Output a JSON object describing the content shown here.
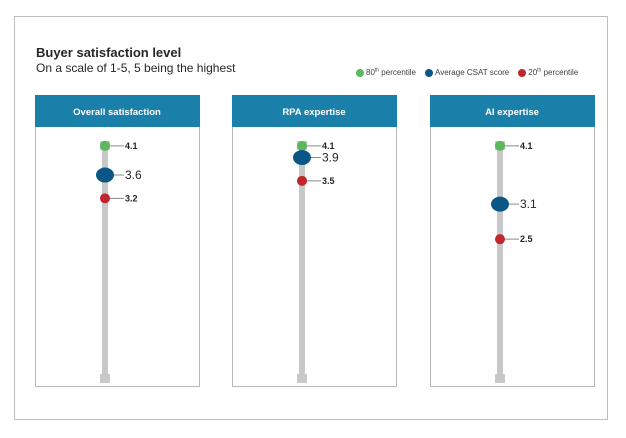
{
  "title": "Buyer satisfaction level",
  "subtitle": "On a scale of 1-5, 5 being the highest",
  "colors": {
    "panel_header": "#1a7fa9",
    "panel_border": "#b8b8b8",
    "track": "#c8c8c8",
    "p80": "#5cb85c",
    "avg": "#0a5787",
    "p20": "#c0272d",
    "label": "#262626"
  },
  "legend": [
    {
      "key": "p80",
      "prefix": "80",
      "sup": "th",
      "suffix": " percentile"
    },
    {
      "key": "avg",
      "prefix": "Average CSAT score",
      "sup": "",
      "suffix": ""
    },
    {
      "key": "p20",
      "prefix": "20",
      "sup": "th",
      "suffix": " percentile"
    }
  ],
  "chart_data": {
    "type": "scatter",
    "title": "Buyer satisfaction level",
    "subtitle": "On a scale of 1-5, 5 being the highest",
    "series_names": [
      "80th percentile",
      "Average CSAT score",
      "20th percentile"
    ],
    "legend_position": "top-right",
    "panels": [
      {
        "name": "Overall satisfaction",
        "p80": 4.1,
        "avg": 3.6,
        "p20": 3.2
      },
      {
        "name": "RPA expertise",
        "p80": 4.1,
        "avg": 3.9,
        "p20": 3.5
      },
      {
        "name": "AI expertise",
        "p80": 4.1,
        "avg": 3.1,
        "p20": 2.5
      }
    ]
  }
}
